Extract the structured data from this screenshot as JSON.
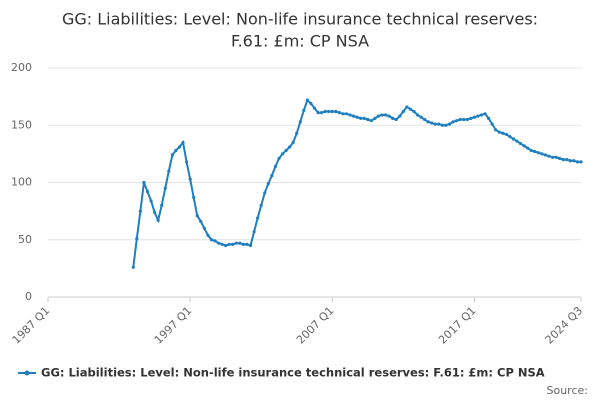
{
  "chart_data": {
    "type": "line",
    "title": [
      "GG: Liabilities: Level: Non-life insurance technical reserves:",
      "F.61: £m: CP NSA"
    ],
    "categories": [
      "1987 Q1",
      null,
      null,
      null,
      null,
      null,
      null,
      null,
      null,
      null,
      null,
      null,
      null,
      null,
      null,
      null,
      null,
      null,
      null,
      null,
      null,
      null,
      null,
      null,
      null,
      null,
      null,
      null,
      null,
      null,
      null,
      null,
      null,
      null,
      null,
      null,
      null,
      null,
      null,
      null,
      "1997 Q1",
      null,
      null,
      null,
      null,
      null,
      null,
      null,
      null,
      null,
      null,
      null,
      null,
      null,
      null,
      null,
      null,
      null,
      null,
      null,
      null,
      null,
      null,
      null,
      null,
      null,
      null,
      null,
      null,
      null,
      null,
      null,
      null,
      null,
      null,
      null,
      null,
      null,
      null,
      null,
      "2007 Q1",
      null,
      null,
      null,
      null,
      null,
      null,
      null,
      null,
      null,
      null,
      null,
      null,
      null,
      null,
      null,
      null,
      null,
      null,
      null,
      null,
      null,
      null,
      null,
      null,
      null,
      null,
      null,
      null,
      null,
      null,
      null,
      null,
      null,
      null,
      null,
      null,
      null,
      null,
      null,
      "2017 Q1",
      null,
      null,
      null,
      null,
      null,
      null,
      null,
      null,
      null,
      null,
      null,
      null,
      null,
      null,
      null,
      null,
      null,
      null,
      null,
      null,
      null,
      null,
      null,
      null,
      null,
      null,
      null,
      null,
      null,
      "2024 Q3"
    ],
    "series": [
      {
        "name": "GG: Liabilities: Level: Non-life insurance technical reserves: F.61: £m: CP NSA",
        "color": "#1f7fbf",
        "values": [
          null,
          null,
          null,
          null,
          null,
          null,
          null,
          null,
          null,
          null,
          null,
          null,
          null,
          null,
          null,
          null,
          null,
          null,
          null,
          null,
          null,
          null,
          null,
          null,
          26,
          51,
          75,
          100,
          92,
          84,
          74,
          67,
          80,
          95,
          110,
          124,
          128,
          131,
          135,
          118,
          103,
          87,
          71,
          66,
          60,
          54,
          50,
          49,
          47,
          46,
          45,
          46,
          46,
          47,
          47,
          46,
          46,
          45,
          57,
          69,
          80,
          91,
          99,
          106,
          114,
          121,
          125,
          128,
          131,
          135,
          143,
          153,
          163,
          172,
          169,
          165,
          161,
          161,
          162,
          162,
          162,
          162,
          161,
          160,
          160,
          159,
          158,
          157,
          156,
          156,
          155,
          154,
          156,
          158,
          159,
          159,
          158,
          156,
          155,
          158,
          162,
          166,
          164,
          162,
          159,
          157,
          155,
          153,
          152,
          151,
          151,
          150,
          150,
          151,
          153,
          154,
          155,
          155,
          155,
          156,
          157,
          158,
          159,
          160,
          156,
          151,
          146,
          144,
          143,
          142,
          140,
          138,
          136,
          134,
          132,
          130,
          128,
          127,
          126,
          125,
          124,
          123,
          122,
          122,
          121,
          120,
          120,
          119,
          119,
          118,
          118
        ]
      }
    ],
    "ylim": [
      0,
      200
    ],
    "yticks": [
      0,
      50,
      100,
      150,
      200
    ],
    "grid": true,
    "source_label": "Source:"
  }
}
